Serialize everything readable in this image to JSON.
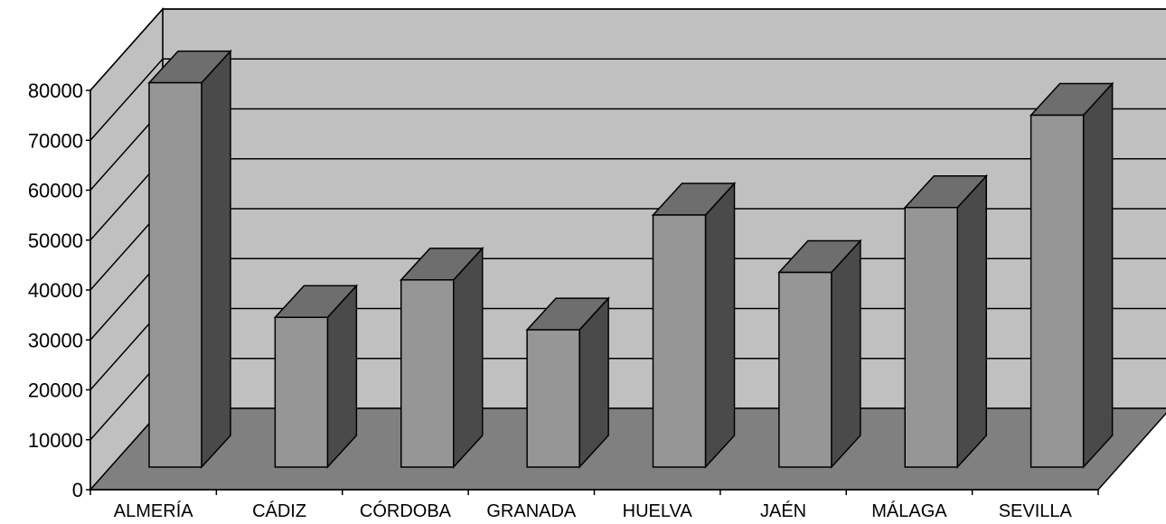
{
  "chart_data": {
    "type": "bar",
    "title": "",
    "xlabel": "",
    "ylabel": "",
    "categories": [
      "ALMERÍA",
      "CÁDIZ",
      "CÓRDOBA",
      "GRANADA",
      "HUELVA",
      "JAÉN",
      "MÁLAGA",
      "SEVILLA"
    ],
    "values": [
      77000,
      30000,
      37500,
      27500,
      50500,
      39000,
      52000,
      70500
    ],
    "ylim": [
      0,
      80000
    ],
    "yticks": [
      0,
      10000,
      20000,
      30000,
      40000,
      50000,
      60000,
      70000,
      80000
    ],
    "grid": true,
    "legend": "none",
    "three_d": true
  },
  "colors": {
    "wall": "#c0c0c0",
    "floor": "#808080",
    "bar_front": "#969696",
    "bar_top": "#6e6e6e",
    "bar_side": "#4a4a4a",
    "outline": "#000000"
  }
}
